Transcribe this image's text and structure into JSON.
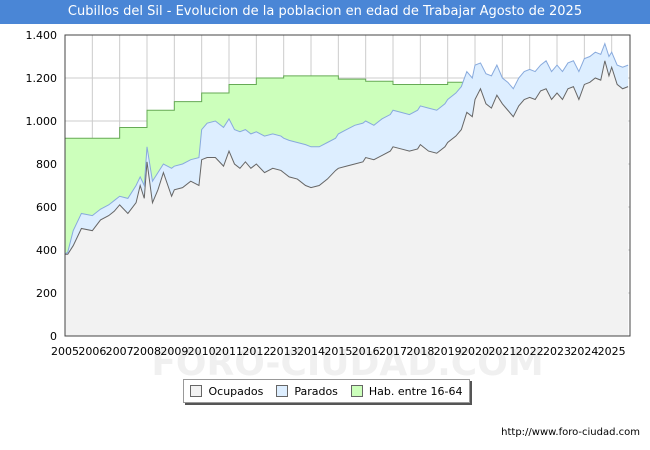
{
  "header": {
    "title": "Cubillos del Sil - Evolucion de la poblacion en edad de Trabajar Agosto de 2025"
  },
  "source": "http://www.foro-ciudad.com",
  "watermark": "FORO-CIUDAD.COM",
  "chart_data": {
    "type": "area",
    "title": "Cubillos del Sil - Evolucion de la poblacion en edad de Trabajar Agosto de 2025",
    "xlabel": "",
    "ylabel": "",
    "xlim": [
      2005,
      2025.67
    ],
    "ylim": [
      0,
      1400
    ],
    "yticks": [
      0,
      200,
      400,
      600,
      800,
      1000,
      1200,
      1400
    ],
    "ytick_labels": [
      "0",
      "200",
      "400",
      "600",
      "800",
      "1.000",
      "1.200",
      "1.400"
    ],
    "xtick_labels": [
      "2005",
      "2006",
      "2007",
      "2008",
      "2009",
      "2010",
      "2011",
      "2012",
      "2013",
      "2014",
      "2015",
      "2016",
      "2017",
      "2018",
      "2019",
      "2020",
      "2021",
      "2022",
      "2023",
      "2024",
      "2025"
    ],
    "grid": true,
    "legend": "bottom-center",
    "colors": {
      "ocupados": "#f2f2f2",
      "ocupados_line": "#666666",
      "parados": "#ddeeff",
      "parados_line": "#88aadd",
      "hab": "#ccffbb",
      "hab_line": "#66aa55",
      "title_bg": "#4a86d6"
    },
    "series": [
      {
        "name": "Ocupados",
        "x": [
          2005.0,
          2005.1,
          2005.3,
          2005.6,
          2006.0,
          2006.3,
          2006.6,
          2006.8,
          2007.0,
          2007.3,
          2007.6,
          2007.75,
          2007.9,
          2008.0,
          2008.2,
          2008.4,
          2008.6,
          2008.9,
          2009.0,
          2009.3,
          2009.6,
          2009.9,
          2010.0,
          2010.2,
          2010.5,
          2010.8,
          2011.0,
          2011.2,
          2011.4,
          2011.6,
          2011.8,
          2012.0,
          2012.3,
          2012.6,
          2012.9,
          2013.0,
          2013.2,
          2013.5,
          2013.8,
          2014.0,
          2014.3,
          2014.6,
          2014.9,
          2015.0,
          2015.3,
          2015.6,
          2015.9,
          2016.0,
          2016.3,
          2016.6,
          2016.9,
          2017.0,
          2017.3,
          2017.6,
          2017.9,
          2018.0,
          2018.3,
          2018.6,
          2018.9,
          2019.0,
          2019.3,
          2019.5,
          2019.7,
          2019.9,
          2020.0,
          2020.2,
          2020.4,
          2020.6,
          2020.8,
          2021.0,
          2021.2,
          2021.4,
          2021.6,
          2021.8,
          2022.0,
          2022.2,
          2022.4,
          2022.6,
          2022.8,
          2023.0,
          2023.2,
          2023.4,
          2023.6,
          2023.8,
          2024.0,
          2024.2,
          2024.4,
          2024.6,
          2024.75,
          2024.9,
          2025.0,
          2025.2,
          2025.4,
          2025.6
        ],
        "values": [
          380,
          380,
          420,
          500,
          490,
          540,
          560,
          580,
          610,
          570,
          620,
          700,
          640,
          810,
          620,
          680,
          760,
          650,
          680,
          690,
          720,
          700,
          820,
          830,
          830,
          790,
          860,
          800,
          780,
          810,
          780,
          800,
          760,
          780,
          770,
          760,
          740,
          730,
          700,
          690,
          700,
          730,
          770,
          780,
          790,
          800,
          810,
          830,
          820,
          840,
          860,
          880,
          870,
          860,
          870,
          890,
          860,
          850,
          880,
          900,
          930,
          960,
          1040,
          1020,
          1100,
          1150,
          1080,
          1060,
          1120,
          1080,
          1050,
          1020,
          1070,
          1100,
          1110,
          1100,
          1140,
          1150,
          1100,
          1130,
          1100,
          1150,
          1160,
          1100,
          1170,
          1180,
          1200,
          1190,
          1280,
          1210,
          1250,
          1170,
          1150,
          1160
        ]
      },
      {
        "name": "Parados",
        "x": [
          2005.0,
          2005.1,
          2005.3,
          2005.6,
          2006.0,
          2006.3,
          2006.6,
          2006.8,
          2007.0,
          2007.3,
          2007.6,
          2007.75,
          2007.9,
          2008.0,
          2008.2,
          2008.4,
          2008.6,
          2008.9,
          2009.0,
          2009.3,
          2009.6,
          2009.9,
          2010.0,
          2010.2,
          2010.5,
          2010.8,
          2011.0,
          2011.2,
          2011.4,
          2011.6,
          2011.8,
          2012.0,
          2012.3,
          2012.6,
          2012.9,
          2013.0,
          2013.2,
          2013.5,
          2013.8,
          2014.0,
          2014.3,
          2014.6,
          2014.9,
          2015.0,
          2015.3,
          2015.6,
          2015.9,
          2016.0,
          2016.3,
          2016.6,
          2016.9,
          2017.0,
          2017.3,
          2017.6,
          2017.9,
          2018.0,
          2018.3,
          2018.6,
          2018.9,
          2019.0,
          2019.3,
          2019.5,
          2019.7,
          2019.9,
          2020.0,
          2020.2,
          2020.4,
          2020.6,
          2020.8,
          2021.0,
          2021.2,
          2021.4,
          2021.6,
          2021.8,
          2022.0,
          2022.2,
          2022.4,
          2022.6,
          2022.8,
          2023.0,
          2023.2,
          2023.4,
          2023.6,
          2023.8,
          2024.0,
          2024.2,
          2024.4,
          2024.6,
          2024.75,
          2024.9,
          2025.0,
          2025.2,
          2025.4,
          2025.6
        ],
        "values": [
          380,
          390,
          490,
          570,
          560,
          590,
          610,
          630,
          650,
          640,
          700,
          740,
          700,
          880,
          720,
          760,
          800,
          780,
          790,
          800,
          820,
          830,
          960,
          990,
          1000,
          970,
          1010,
          960,
          950,
          960,
          940,
          950,
          930,
          940,
          930,
          920,
          910,
          900,
          890,
          880,
          880,
          900,
          920,
          940,
          960,
          980,
          990,
          1000,
          980,
          1010,
          1030,
          1050,
          1040,
          1030,
          1050,
          1070,
          1060,
          1050,
          1080,
          1100,
          1130,
          1160,
          1230,
          1200,
          1260,
          1270,
          1220,
          1210,
          1260,
          1200,
          1180,
          1150,
          1200,
          1230,
          1240,
          1230,
          1260,
          1280,
          1230,
          1260,
          1230,
          1270,
          1280,
          1230,
          1290,
          1300,
          1320,
          1310,
          1360,
          1300,
          1320,
          1260,
          1250,
          1260
        ]
      },
      {
        "name": "Hab. entre 16-64",
        "x": [
          2005,
          2006,
          2007,
          2008,
          2009,
          2010,
          2011,
          2012,
          2013,
          2014,
          2015,
          2016,
          2017,
          2018,
          2019
        ],
        "values": [
          920,
          920,
          970,
          1050,
          1090,
          1130,
          1170,
          1200,
          1210,
          1210,
          1195,
          1185,
          1170,
          1170,
          1180
        ]
      }
    ]
  }
}
